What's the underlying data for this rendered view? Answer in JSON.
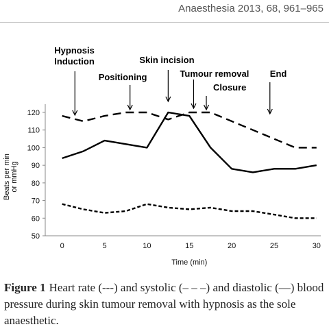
{
  "header": {
    "journal_ref": "Anaesthesia 2013, 68, 961–965"
  },
  "caption": {
    "figure_label": "Figure 1",
    "text": "Heart rate (---) and systolic (– – –) and diastolic (—) blood pressure during skin tumour removal with hypnosis as the sole anaesthetic."
  },
  "chart_data": {
    "type": "line",
    "xlabel": "Time (min)",
    "ylabel": "Beats per min or mmHg",
    "xlim": [
      -2,
      30.5
    ],
    "ylim": [
      50,
      120
    ],
    "xticks": [
      0,
      5,
      10,
      15,
      20,
      25,
      30
    ],
    "yticks": [
      50,
      60,
      70,
      80,
      90,
      100,
      110,
      120
    ],
    "grid": false,
    "series": [
      {
        "style": "solid",
        "x": [
          0,
          2.5,
          5,
          10,
          12.5,
          15,
          17.5,
          20,
          22.5,
          25,
          27.5,
          30
        ],
        "values": [
          94,
          98,
          104,
          100,
          120,
          118,
          100,
          88,
          86,
          88,
          88,
          90
        ]
      },
      {
        "style": "long-dash",
        "x": [
          0,
          2.5,
          5,
          7.5,
          10,
          12.5,
          15,
          17.5,
          20,
          22.5,
          25,
          27.5,
          30
        ],
        "values": [
          118,
          115,
          118,
          120,
          120,
          116,
          120,
          120,
          115,
          110,
          105,
          100,
          100
        ]
      },
      {
        "style": "short-dash",
        "x": [
          0,
          2.5,
          5,
          7.5,
          10,
          12.5,
          15,
          17.5,
          20,
          22.5,
          25,
          27.5,
          30
        ],
        "values": [
          68,
          65,
          63,
          64,
          68,
          66,
          65,
          66,
          64,
          64,
          62,
          60,
          60
        ]
      }
    ],
    "annotations": [
      {
        "lines": [
          "Hypnosis",
          "Induction"
        ],
        "x": 1.5
      },
      {
        "lines": [
          "Positioning"
        ],
        "x": 8
      },
      {
        "lines": [
          "Skin incision"
        ],
        "x": 12.5
      },
      {
        "lines": [
          "Tumour removal"
        ],
        "x": 15.5
      },
      {
        "lines": [
          "Closure"
        ],
        "x": 17
      },
      {
        "lines": [
          "End"
        ],
        "x": 24.5
      }
    ]
  }
}
